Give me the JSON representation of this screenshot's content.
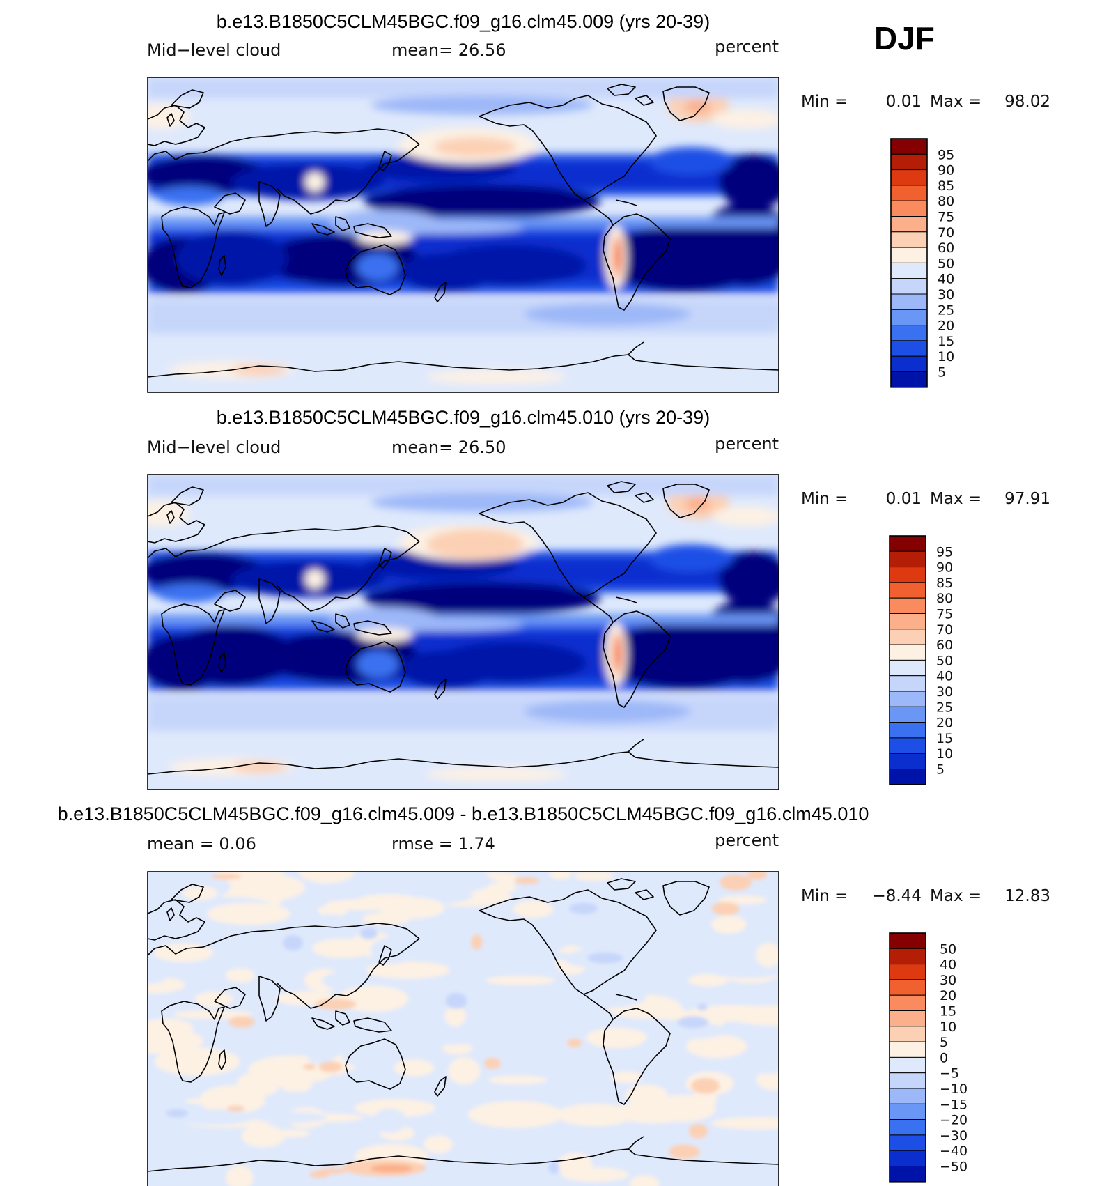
{
  "season": "DJF",
  "colors": {
    "land_outline": "#000000",
    "abs_scale": [
      "#00007d",
      "#0013a8",
      "#0b2fcf",
      "#1d4fe6",
      "#3a71f0",
      "#6a96f5",
      "#9db8f8",
      "#c6d6fb",
      "#dfe9fc",
      "#fdf1e4",
      "#fcd0b4",
      "#fbb08b",
      "#f98b5e",
      "#f1602f",
      "#dd3a12",
      "#b51e06",
      "#850000"
    ],
    "diff_scale": [
      "#00007d",
      "#0013a8",
      "#0b2fcf",
      "#1d4fe6",
      "#3a71f0",
      "#6a96f5",
      "#9db8f8",
      "#c6d6fb",
      "#dfe9fc",
      "#fdf1e4",
      "#fcd0b4",
      "#fbb08b",
      "#f98b5e",
      "#f1602f",
      "#dd3a12",
      "#b51e06",
      "#850000"
    ]
  },
  "panels": [
    {
      "title": "b.e13.B1850C5CLM45BGC.f09_g16.clm45.009 (yrs 20-39)",
      "left_label": "Mid−level  cloud",
      "center_label": "mean=   26.56",
      "units": "percent",
      "min_label": "Min  =",
      "min_value": "0.01",
      "max_label": "Max  =",
      "max_value": "98.02",
      "colorbar_labels": [
        "95",
        "90",
        "85",
        "80",
        "75",
        "70",
        "60",
        "50",
        "40",
        "30",
        "25",
        "20",
        "15",
        "10",
        "5"
      ],
      "field": "abs"
    },
    {
      "title": "b.e13.B1850C5CLM45BGC.f09_g16.clm45.010 (yrs 20-39)",
      "left_label": "Mid−level  cloud",
      "center_label": "mean=   26.50",
      "units": "percent",
      "min_label": "Min  =",
      "min_value": "0.01",
      "max_label": "Max  =",
      "max_value": "97.91",
      "colorbar_labels": [
        "95",
        "90",
        "85",
        "80",
        "75",
        "70",
        "60",
        "50",
        "40",
        "30",
        "25",
        "20",
        "15",
        "10",
        "5"
      ],
      "field": "abs2"
    },
    {
      "title": "b.e13.B1850C5CLM45BGC.f09_g16.clm45.009 - b.e13.B1850C5CLM45BGC.f09_g16.clm45.010",
      "left_label": "mean  =      0.06",
      "center_label": "rmse  =      1.74",
      "units": "percent",
      "min_label": "Min  =",
      "min_value": "−8.44",
      "max_label": "Max  =",
      "max_value": "12.83",
      "colorbar_labels": [
        "50",
        "40",
        "30",
        "20",
        "15",
        "10",
        "5",
        "0",
        "−5",
        "−10",
        "−15",
        "−20",
        "−30",
        "−40",
        "−50"
      ],
      "field": "diff"
    }
  ]
}
